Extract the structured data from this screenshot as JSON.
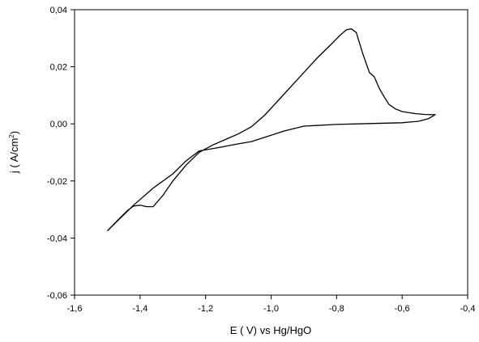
{
  "chart_data": {
    "type": "line",
    "title": "",
    "xlabel": "E ( V) vs Hg/HgO",
    "ylabel": {
      "main": "j ( A/cm",
      "sup": "2",
      "close": ")"
    },
    "xlim": [
      -1.6,
      -0.4
    ],
    "ylim": [
      -0.06,
      0.04
    ],
    "xticks": [
      {
        "value": -1.6,
        "label": "-1,6"
      },
      {
        "value": -1.4,
        "label": "-1,4"
      },
      {
        "value": -1.2,
        "label": "-1,2"
      },
      {
        "value": -1.0,
        "label": "-1,0"
      },
      {
        "value": -0.8,
        "label": "-0,8"
      },
      {
        "value": -0.6,
        "label": "-0,6"
      },
      {
        "value": -0.4,
        "label": "-0,4"
      }
    ],
    "yticks": [
      {
        "value": -0.06,
        "label": "-0,06"
      },
      {
        "value": -0.04,
        "label": "-0,04"
      },
      {
        "value": -0.02,
        "label": "-0,02"
      },
      {
        "value": 0.0,
        "label": "0,00"
      },
      {
        "value": 0.02,
        "label": "0,02"
      },
      {
        "value": 0.04,
        "label": "0,04"
      }
    ],
    "grid": false,
    "series": [
      {
        "color": "#000000",
        "points": [
          [
            -1.5,
            -0.0375
          ],
          [
            -1.47,
            -0.034
          ],
          [
            -1.44,
            -0.0305
          ],
          [
            -1.42,
            -0.0288
          ],
          [
            -1.4,
            -0.0285
          ],
          [
            -1.38,
            -0.029
          ],
          [
            -1.36,
            -0.029
          ],
          [
            -1.33,
            -0.025
          ],
          [
            -1.3,
            -0.02
          ],
          [
            -1.26,
            -0.0145
          ],
          [
            -1.22,
            -0.01
          ],
          [
            -1.18,
            -0.0075
          ],
          [
            -1.14,
            -0.0055
          ],
          [
            -1.1,
            -0.0035
          ],
          [
            -1.06,
            -0.001
          ],
          [
            -1.02,
            0.003
          ],
          [
            -0.98,
            0.008
          ],
          [
            -0.94,
            0.013
          ],
          [
            -0.9,
            0.018
          ],
          [
            -0.86,
            0.023
          ],
          [
            -0.82,
            0.0275
          ],
          [
            -0.79,
            0.031
          ],
          [
            -0.77,
            0.033
          ],
          [
            -0.755,
            0.0333
          ],
          [
            -0.74,
            0.032
          ],
          [
            -0.72,
            0.0245
          ],
          [
            -0.7,
            0.018
          ],
          [
            -0.685,
            0.0165
          ],
          [
            -0.67,
            0.0125
          ],
          [
            -0.655,
            0.0095
          ],
          [
            -0.64,
            0.0068
          ],
          [
            -0.62,
            0.0052
          ],
          [
            -0.6,
            0.0043
          ],
          [
            -0.56,
            0.0036
          ],
          [
            -0.53,
            0.0033
          ],
          [
            -0.5,
            0.0032
          ],
          [
            -0.505,
            0.0028
          ],
          [
            -0.52,
            0.0018
          ],
          [
            -0.55,
            0.0009
          ],
          [
            -0.6,
            0.0004
          ],
          [
            -0.7,
            0.0001
          ],
          [
            -0.8,
            -0.0002
          ],
          [
            -0.9,
            -0.0008
          ],
          [
            -0.96,
            -0.0025
          ],
          [
            -1.0,
            -0.004
          ],
          [
            -1.06,
            -0.0062
          ],
          [
            -1.1,
            -0.007
          ],
          [
            -1.16,
            -0.0083
          ],
          [
            -1.22,
            -0.0095
          ],
          [
            -1.26,
            -0.013
          ],
          [
            -1.3,
            -0.0175
          ],
          [
            -1.36,
            -0.0225
          ],
          [
            -1.42,
            -0.0285
          ],
          [
            -1.46,
            -0.033
          ],
          [
            -1.5,
            -0.0375
          ]
        ]
      }
    ]
  }
}
